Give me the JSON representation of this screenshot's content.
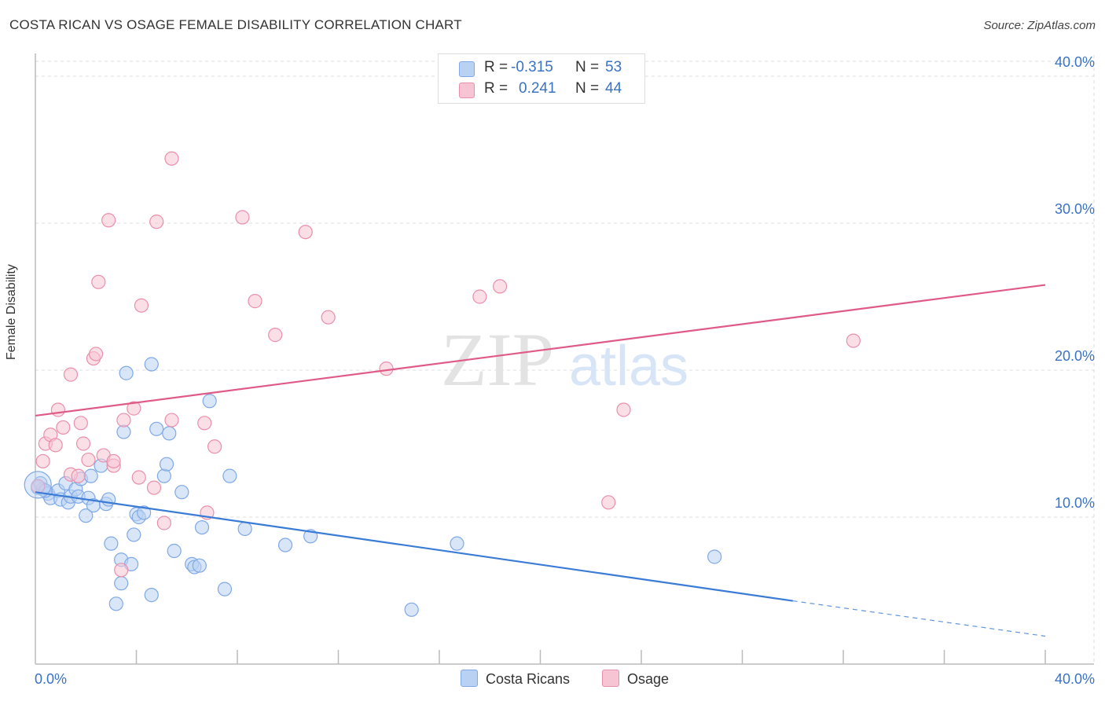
{
  "header": {
    "title": "COSTA RICAN VS OSAGE FEMALE DISABILITY CORRELATION CHART",
    "source": "Source: ZipAtlas.com"
  },
  "legend": {
    "r_label": "R =",
    "n_label": "N =",
    "series": [
      {
        "name": "Costa Ricans",
        "r": "-0.315",
        "n": "53",
        "color": "#7fa9e6",
        "fill": "#b9d1f3"
      },
      {
        "name": "Osage",
        "r": "0.241",
        "n": "44",
        "color": "#e98fac",
        "fill": "#f7c4d4"
      }
    ]
  },
  "watermark": {
    "part1": "ZIP",
    "part2": "atlas"
  },
  "chart_data": {
    "type": "scatter",
    "title": "COSTA RICAN VS OSAGE FEMALE DISABILITY CORRELATION CHART",
    "xlabel": "",
    "ylabel": "Female Disability",
    "xlim": [
      0,
      40
    ],
    "ylim": [
      0,
      40
    ],
    "x_tick_labels": [
      "0.0%",
      "40.0%"
    ],
    "y_ticks": [
      10,
      20,
      30,
      40
    ],
    "y_tick_labels": [
      "10.0%",
      "20.0%",
      "30.0%",
      "40.0%"
    ],
    "grid": true,
    "legend_position": "top-center",
    "series": [
      {
        "name": "Costa Ricans",
        "color": "#3a7bd5",
        "trend": {
          "x0": 0,
          "y0": 11.7,
          "x1": 30,
          "y1": 4.3,
          "dash_to_x": 40,
          "dash_to_y": 1.9
        },
        "points": [
          [
            0.1,
            12.0
          ],
          [
            0.3,
            11.9
          ],
          [
            0.5,
            11.6
          ],
          [
            0.6,
            11.3
          ],
          [
            0.9,
            11.8
          ],
          [
            1.0,
            11.2
          ],
          [
            1.2,
            12.3
          ],
          [
            1.3,
            11.0
          ],
          [
            1.4,
            11.4
          ],
          [
            1.6,
            11.9
          ],
          [
            1.7,
            11.4
          ],
          [
            1.8,
            12.6
          ],
          [
            2.0,
            10.1
          ],
          [
            2.1,
            11.3
          ],
          [
            2.2,
            12.8
          ],
          [
            2.3,
            10.8
          ],
          [
            2.6,
            13.5
          ],
          [
            2.8,
            10.9
          ],
          [
            2.9,
            11.2
          ],
          [
            3.0,
            8.2
          ],
          [
            3.2,
            4.1
          ],
          [
            3.4,
            5.5
          ],
          [
            3.4,
            7.1
          ],
          [
            3.5,
            15.8
          ],
          [
            3.6,
            19.8
          ],
          [
            3.8,
            6.8
          ],
          [
            3.9,
            8.8
          ],
          [
            4.0,
            10.2
          ],
          [
            4.1,
            10.0
          ],
          [
            4.3,
            10.3
          ],
          [
            4.6,
            20.4
          ],
          [
            4.6,
            4.7
          ],
          [
            4.8,
            16.0
          ],
          [
            5.1,
            12.8
          ],
          [
            5.2,
            13.6
          ],
          [
            5.3,
            15.7
          ],
          [
            5.5,
            7.7
          ],
          [
            5.8,
            11.7
          ],
          [
            6.2,
            6.8
          ],
          [
            6.3,
            6.6
          ],
          [
            6.5,
            6.7
          ],
          [
            6.6,
            9.3
          ],
          [
            6.9,
            17.9
          ],
          [
            7.5,
            5.1
          ],
          [
            7.7,
            12.8
          ],
          [
            8.3,
            9.2
          ],
          [
            9.9,
            8.1
          ],
          [
            10.9,
            8.7
          ],
          [
            14.9,
            3.7
          ],
          [
            16.7,
            8.2
          ],
          [
            26.9,
            7.3
          ],
          [
            0.2,
            12.3
          ],
          [
            0.4,
            11.8
          ]
        ]
      },
      {
        "name": "Osage",
        "color": "#e05a88",
        "trend": {
          "x0": 0,
          "y0": 16.9,
          "x1": 40,
          "y1": 25.8
        },
        "points": [
          [
            0.1,
            12.1
          ],
          [
            0.3,
            13.8
          ],
          [
            0.4,
            15.0
          ],
          [
            0.6,
            15.6
          ],
          [
            0.8,
            14.9
          ],
          [
            0.9,
            17.3
          ],
          [
            1.1,
            16.1
          ],
          [
            1.4,
            12.9
          ],
          [
            1.4,
            19.7
          ],
          [
            1.7,
            12.8
          ],
          [
            1.8,
            16.4
          ],
          [
            1.9,
            15.0
          ],
          [
            2.1,
            13.9
          ],
          [
            2.3,
            20.8
          ],
          [
            2.4,
            21.1
          ],
          [
            2.5,
            26.0
          ],
          [
            2.7,
            14.2
          ],
          [
            2.9,
            30.2
          ],
          [
            3.1,
            13.5
          ],
          [
            3.1,
            13.8
          ],
          [
            3.4,
            6.4
          ],
          [
            3.5,
            16.6
          ],
          [
            3.9,
            17.4
          ],
          [
            4.1,
            12.7
          ],
          [
            4.2,
            24.4
          ],
          [
            4.7,
            12.0
          ],
          [
            4.8,
            30.1
          ],
          [
            5.1,
            9.6
          ],
          [
            5.4,
            16.6
          ],
          [
            5.4,
            34.4
          ],
          [
            6.7,
            16.4
          ],
          [
            6.8,
            10.3
          ],
          [
            7.1,
            14.8
          ],
          [
            8.2,
            30.4
          ],
          [
            8.7,
            24.7
          ],
          [
            9.5,
            22.4
          ],
          [
            10.7,
            29.4
          ],
          [
            11.6,
            23.6
          ],
          [
            13.9,
            20.1
          ],
          [
            17.6,
            25.0
          ],
          [
            18.4,
            25.7
          ],
          [
            22.7,
            11.0
          ],
          [
            23.3,
            17.3
          ],
          [
            32.4,
            22.0
          ]
        ]
      }
    ]
  }
}
